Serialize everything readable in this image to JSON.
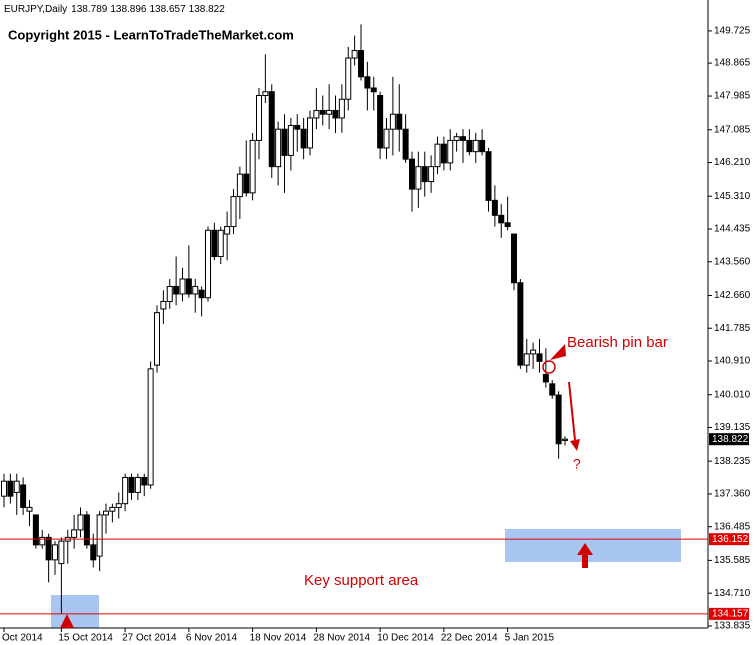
{
  "chart_data": {
    "type": "candlestick",
    "title": "EURJPY,Daily",
    "copyright": "Copyright 2015 - LearnToTradeTheMarket.com",
    "annotations": {
      "pin_bar": "Bearish pin bar",
      "question": "?",
      "support": "Key support area"
    },
    "categories": [
      "Oct 2014",
      null,
      null,
      null,
      null,
      null,
      null,
      null,
      null,
      "15 Oct 2014",
      null,
      null,
      null,
      null,
      null,
      null,
      null,
      null,
      null,
      "27 Oct 2014",
      null,
      null,
      null,
      null,
      null,
      null,
      null,
      null,
      null,
      "6 Nov 2014",
      null,
      null,
      null,
      null,
      null,
      null,
      null,
      null,
      null,
      "18 Nov 2014",
      null,
      null,
      null,
      null,
      null,
      null,
      null,
      null,
      null,
      "28 Nov 2014",
      null,
      null,
      null,
      null,
      null,
      null,
      null,
      null,
      null,
      "10 Dec 2014",
      null,
      null,
      null,
      null,
      null,
      null,
      null,
      null,
      null,
      "22 Dec 2014",
      null,
      null,
      null,
      null,
      null,
      null,
      null,
      null,
      null,
      "5 Jan 2015",
      null,
      null,
      null,
      null,
      null,
      null,
      null,
      null,
      null
    ],
    "open": [
      137.3,
      137.7,
      137.4,
      137.6,
      136.9,
      136.8,
      136.0,
      136.2,
      135.6,
      135.5,
      136.1,
      136.2,
      136.4,
      136.8,
      136.0,
      135.7,
      136.8,
      136.9,
      137.0,
      137.1,
      137.8,
      137.4,
      137.8,
      137.6,
      140.8,
      142.3,
      142.5,
      142.9,
      142.7,
      143.1,
      142.7,
      142.8,
      142.6,
      144.4,
      143.7,
      144.3,
      144.5,
      145.3,
      145.9,
      145.4,
      146.8,
      148.0,
      148.1,
      146.1,
      147.1,
      146.4,
      147.2,
      147.1,
      146.6,
      147.4,
      147.6,
      147.5,
      147.6,
      147.4,
      147.9,
      149.0,
      149.2,
      148.5,
      148.2,
      148.0,
      146.6,
      147.1,
      147.5,
      147.1,
      146.3,
      145.5,
      146.1,
      145.7,
      146.1,
      146.7,
      146.2,
      146.8,
      146.9,
      146.8,
      146.5,
      146.8,
      146.5,
      145.2,
      144.8,
      144.6,
      144.3,
      143.0,
      140.8,
      141.1,
      141.1,
      140.55,
      140.3,
      140.0,
      138.789
    ],
    "high": [
      137.9,
      137.9,
      137.9,
      137.8,
      137.2,
      136.8,
      136.4,
      136.3,
      136.1,
      136.2,
      136.4,
      136.8,
      137.0,
      136.9,
      136.3,
      136.9,
      137.1,
      137.1,
      137.4,
      137.9,
      137.9,
      137.9,
      137.9,
      140.9,
      142.4,
      142.8,
      143.1,
      143.7,
      143.4,
      144.0,
      143.1,
      142.9,
      144.5,
      144.6,
      144.5,
      144.9,
      145.5,
      146.1,
      146.8,
      147.0,
      148.2,
      149.1,
      148.3,
      147.3,
      147.5,
      147.4,
      147.5,
      147.4,
      147.6,
      148.2,
      148.0,
      148.3,
      148.0,
      148.3,
      149.3,
      149.6,
      149.9,
      148.9,
      148.5,
      148.1,
      147.4,
      148.5,
      148.3,
      147.5,
      146.5,
      146.5,
      146.5,
      146.4,
      146.9,
      146.9,
      147.1,
      147.0,
      147.1,
      147.1,
      147.0,
      147.1,
      146.6,
      145.6,
      145.1,
      145.3,
      144.3,
      143.1,
      141.5,
      141.4,
      141.5,
      141.25,
      140.4,
      140.1,
      138.896
    ],
    "low": [
      137.0,
      137.1,
      136.8,
      136.8,
      136.5,
      135.9,
      135.9,
      135.0,
      135.2,
      134.16,
      135.5,
      135.9,
      136.2,
      135.9,
      135.4,
      135.3,
      136.3,
      136.6,
      136.7,
      136.9,
      137.2,
      137.2,
      137.3,
      137.5,
      140.6,
      141.9,
      142.3,
      142.4,
      142.5,
      142.6,
      142.2,
      142.1,
      142.5,
      143.6,
      143.5,
      143.6,
      144.3,
      144.7,
      145.3,
      145.2,
      146.3,
      147.8,
      145.8,
      145.6,
      145.4,
      146.0,
      146.5,
      146.3,
      146.4,
      147.1,
      147.2,
      147.1,
      147.0,
      147.0,
      147.6,
      148.8,
      148.4,
      147.6,
      147.6,
      146.3,
      146.3,
      146.4,
      146.5,
      146.2,
      144.9,
      145.0,
      145.3,
      145.4,
      145.9,
      146.0,
      146.0,
      146.5,
      146.2,
      146.4,
      146.2,
      146.4,
      144.9,
      144.5,
      144.2,
      144.4,
      142.8,
      140.7,
      140.6,
      140.7,
      140.6,
      140.2,
      139.9,
      138.3,
      138.657
    ],
    "close": [
      137.7,
      137.3,
      137.7,
      137.0,
      137.0,
      136.0,
      136.2,
      135.6,
      136.0,
      136.1,
      136.2,
      136.4,
      136.8,
      136.0,
      135.6,
      136.8,
      136.9,
      137.0,
      137.1,
      137.8,
      137.4,
      137.8,
      137.6,
      140.7,
      142.2,
      142.5,
      142.9,
      142.7,
      143.1,
      142.7,
      142.9,
      142.6,
      144.4,
      143.7,
      144.4,
      144.5,
      145.3,
      145.9,
      145.4,
      146.8,
      148.0,
      148.1,
      146.1,
      147.1,
      146.4,
      147.2,
      147.1,
      146.6,
      147.4,
      147.6,
      147.5,
      147.6,
      147.4,
      147.9,
      149.0,
      149.2,
      148.5,
      148.2,
      148.1,
      146.6,
      147.1,
      147.5,
      147.1,
      146.3,
      145.5,
      146.1,
      145.7,
      146.1,
      146.7,
      146.2,
      146.8,
      146.9,
      146.8,
      146.5,
      146.8,
      146.5,
      145.2,
      144.8,
      144.6,
      144.5,
      143.0,
      140.8,
      141.1,
      141.2,
      140.9,
      140.35,
      140.0,
      138.7,
      138.822
    ],
    "ylim": [
      133.78,
      150.55
    ],
    "yticks": [
      149.725,
      148.865,
      147.985,
      147.085,
      {
        "value": 146.21,
        "label": "146.210"
      },
      {
        "value": 145.31,
        "label": "145.310"
      },
      144.435,
      {
        "value": 143.56,
        "label": "143.560"
      },
      {
        "value": 142.66,
        "label": "142.660"
      },
      141.785,
      {
        "value": 140.91,
        "label": "140.910"
      },
      {
        "value": 140.01,
        "label": "140.010"
      },
      139.135,
      138.235,
      {
        "value": 137.36,
        "label": "137.360"
      },
      136.485,
      135.585,
      {
        "value": 134.71,
        "label": "134.710"
      },
      133.835
    ],
    "hlines": [
      136.152,
      134.157
    ],
    "hline_color": "#e00000",
    "up_color": "#ffffff",
    "down_color": "#000000"
  }
}
